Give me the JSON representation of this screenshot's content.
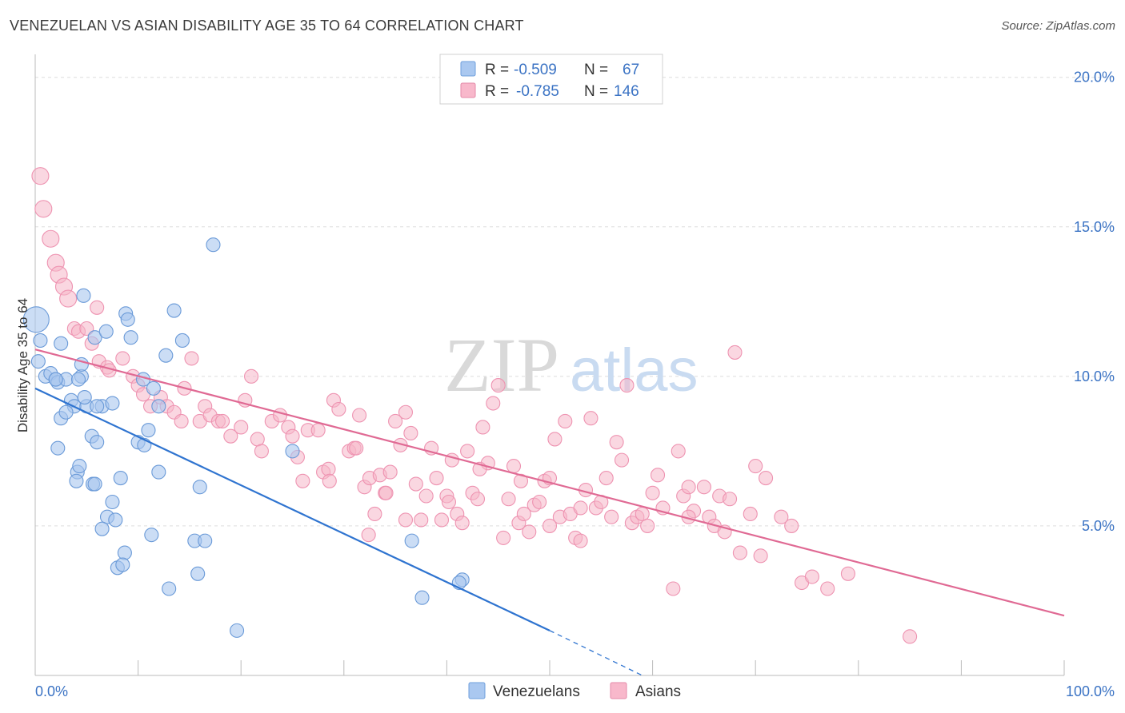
{
  "title": "VENEZUELAN VS ASIAN DISABILITY AGE 35 TO 64 CORRELATION CHART",
  "source": "Source: ZipAtlas.com",
  "watermark": {
    "zip": "ZIP",
    "atlas": "atlas"
  },
  "legend": {
    "rows": [
      {
        "r_label": "R =",
        "r_value": "-0.509",
        "n_label": "N =",
        "n_value": "67",
        "color": "#aac8f0"
      },
      {
        "r_label": "R =",
        "r_value": "-0.785",
        "n_label": "N =",
        "n_value": "146",
        "color": "#f8b8cb"
      }
    ]
  },
  "bottom_legend": [
    {
      "label": "Venezuelans",
      "color": "#aac8f0"
    },
    {
      "label": "Asians",
      "color": "#f8b8cb"
    }
  ],
  "colors": {
    "venezuelans_fill": "#a9c6ee",
    "venezuelans_line": "#2f74d0",
    "asians_fill": "#f6b6c9",
    "asians_line": "#e06a94",
    "tick_label": "#3b73c4",
    "grid": "#dddddd"
  },
  "chart_data": {
    "type": "scatter",
    "title": "VENEZUELAN VS ASIAN DISABILITY AGE 35 TO 64 CORRELATION CHART",
    "xlabel": "",
    "ylabel": "Disability Age 35 to 64",
    "xlim": [
      0,
      100
    ],
    "ylim": [
      0,
      20.5
    ],
    "x_tick_labels": [
      {
        "value": 0,
        "label": "0.0%"
      },
      {
        "value": 100,
        "label": "100.0%"
      }
    ],
    "y_tick_labels": [
      {
        "value": 5,
        "label": "5.0%"
      },
      {
        "value": 10,
        "label": "10.0%"
      },
      {
        "value": 15,
        "label": "15.0%"
      },
      {
        "value": 20,
        "label": "20.0%"
      }
    ],
    "grid": true,
    "legend_position": "top-center",
    "series": [
      {
        "name": "Venezuelans",
        "r": -0.509,
        "n": 67,
        "trend": {
          "x0": 0,
          "y0": 9.6,
          "x1": 50,
          "y1": 1.5,
          "dashed_to_x": 59,
          "dashed_to_y": 0
        },
        "points": [
          [
            0.1,
            11.9
          ],
          [
            0.3,
            10.5
          ],
          [
            0.5,
            11.2
          ],
          [
            1,
            10.0
          ],
          [
            1.5,
            10.1
          ],
          [
            2,
            9.9
          ],
          [
            2.5,
            11.1
          ],
          [
            2.2,
            9.8
          ],
          [
            3,
            9.9
          ],
          [
            3.5,
            9.2
          ],
          [
            3.8,
            9.0
          ],
          [
            4.5,
            10.0
          ],
          [
            4.2,
            9.9
          ],
          [
            5.5,
            8.0
          ],
          [
            5,
            9.0
          ],
          [
            6.5,
            9.0
          ],
          [
            4.8,
            9.3
          ],
          [
            2.5,
            8.6
          ],
          [
            2.2,
            7.6
          ],
          [
            4.5,
            10.4
          ],
          [
            4.7,
            12.7
          ],
          [
            5.8,
            11.3
          ],
          [
            6.9,
            11.5
          ],
          [
            8.8,
            12.1
          ],
          [
            9.0,
            11.9
          ],
          [
            9.3,
            11.3
          ],
          [
            10.5,
            9.9
          ],
          [
            11.0,
            8.2
          ],
          [
            7.5,
            9.1
          ],
          [
            6.0,
            9.0
          ],
          [
            11.5,
            9.6
          ],
          [
            12.0,
            9.0
          ],
          [
            10.0,
            7.8
          ],
          [
            10.6,
            7.7
          ],
          [
            12.7,
            10.7
          ],
          [
            13.5,
            12.2
          ],
          [
            14.3,
            11.2
          ],
          [
            17.3,
            14.4
          ],
          [
            4.1,
            6.8
          ],
          [
            4.0,
            6.5
          ],
          [
            4.3,
            7.0
          ],
          [
            5.6,
            6.4
          ],
          [
            8.3,
            6.6
          ],
          [
            12.0,
            6.8
          ],
          [
            16.0,
            6.3
          ],
          [
            7.5,
            5.8
          ],
          [
            7.0,
            5.3
          ],
          [
            7.8,
            5.2
          ],
          [
            6.5,
            4.9
          ],
          [
            8.7,
            4.1
          ],
          [
            11.3,
            4.7
          ],
          [
            15.5,
            4.5
          ],
          [
            16.5,
            4.5
          ],
          [
            8.0,
            3.6
          ],
          [
            8.5,
            3.7
          ],
          [
            13.0,
            2.9
          ],
          [
            15.8,
            3.4
          ],
          [
            19.6,
            1.5
          ],
          [
            25.0,
            7.5
          ],
          [
            36.6,
            4.5
          ],
          [
            41.5,
            3.2
          ],
          [
            41.2,
            3.1
          ],
          [
            37.6,
            2.6
          ],
          [
            5.8,
            6.4
          ],
          [
            3.0,
            8.8
          ],
          [
            6.0,
            7.8
          ],
          [
            2.0,
            9.9
          ]
        ]
      },
      {
        "name": "Asians",
        "r": -0.785,
        "n": 146,
        "trend": {
          "x0": 0,
          "y0": 10.9,
          "x1": 100,
          "y1": 2.0
        },
        "points": [
          [
            0.5,
            16.7
          ],
          [
            0.8,
            15.6
          ],
          [
            1.5,
            14.6
          ],
          [
            2.0,
            13.8
          ],
          [
            2.3,
            13.4
          ],
          [
            2.8,
            13.0
          ],
          [
            3.2,
            12.6
          ],
          [
            3.8,
            11.6
          ],
          [
            4.2,
            11.5
          ],
          [
            5.0,
            11.6
          ],
          [
            6.0,
            12.3
          ],
          [
            5.5,
            11.1
          ],
          [
            6.2,
            10.5
          ],
          [
            7.0,
            10.3
          ],
          [
            7.2,
            10.2
          ],
          [
            8.5,
            10.6
          ],
          [
            9.5,
            10.0
          ],
          [
            10.0,
            9.7
          ],
          [
            10.5,
            9.4
          ],
          [
            11.2,
            9.0
          ],
          [
            12.2,
            9.3
          ],
          [
            12.8,
            9.0
          ],
          [
            13.5,
            8.8
          ],
          [
            14.2,
            8.5
          ],
          [
            14.5,
            9.6
          ],
          [
            15.2,
            10.6
          ],
          [
            16.0,
            8.5
          ],
          [
            16.5,
            9.0
          ],
          [
            17.0,
            8.7
          ],
          [
            17.8,
            8.5
          ],
          [
            18.2,
            8.5
          ],
          [
            19.0,
            8.0
          ],
          [
            20.0,
            8.3
          ],
          [
            20.4,
            9.2
          ],
          [
            21.0,
            10.0
          ],
          [
            21.6,
            7.9
          ],
          [
            22.0,
            7.5
          ],
          [
            23.0,
            8.5
          ],
          [
            23.8,
            8.7
          ],
          [
            24.6,
            8.3
          ],
          [
            25.0,
            8.0
          ],
          [
            25.5,
            7.3
          ],
          [
            26.0,
            6.5
          ],
          [
            26.5,
            8.2
          ],
          [
            27.5,
            8.2
          ],
          [
            28.0,
            6.8
          ],
          [
            28.5,
            6.9
          ],
          [
            29.0,
            9.2
          ],
          [
            29.5,
            8.9
          ],
          [
            30.5,
            7.5
          ],
          [
            31.0,
            7.6
          ],
          [
            31.5,
            8.7
          ],
          [
            32.0,
            6.3
          ],
          [
            32.5,
            6.6
          ],
          [
            33.0,
            5.4
          ],
          [
            33.5,
            6.7
          ],
          [
            34.0,
            6.1
          ],
          [
            34.5,
            6.8
          ],
          [
            35.0,
            8.5
          ],
          [
            35.5,
            7.7
          ],
          [
            36.0,
            8.8
          ],
          [
            36.5,
            8.1
          ],
          [
            37.0,
            6.4
          ],
          [
            37.5,
            5.2
          ],
          [
            38.0,
            6.0
          ],
          [
            38.5,
            7.6
          ],
          [
            39.0,
            6.6
          ],
          [
            39.5,
            5.2
          ],
          [
            40.0,
            6.0
          ],
          [
            40.5,
            7.2
          ],
          [
            41.0,
            5.4
          ],
          [
            41.5,
            5.1
          ],
          [
            42.0,
            7.5
          ],
          [
            42.5,
            6.1
          ],
          [
            43.0,
            5.9
          ],
          [
            43.5,
            8.3
          ],
          [
            44.0,
            7.1
          ],
          [
            44.5,
            9.1
          ],
          [
            45.0,
            9.7
          ],
          [
            45.5,
            4.6
          ],
          [
            46.0,
            5.9
          ],
          [
            46.5,
            7.0
          ],
          [
            47.0,
            5.1
          ],
          [
            47.5,
            5.4
          ],
          [
            48.0,
            4.8
          ],
          [
            48.5,
            5.7
          ],
          [
            49.0,
            5.8
          ],
          [
            49.5,
            6.5
          ],
          [
            50.0,
            6.6
          ],
          [
            50.5,
            7.9
          ],
          [
            51.0,
            5.3
          ],
          [
            51.5,
            8.5
          ],
          [
            52.0,
            5.4
          ],
          [
            52.5,
            4.6
          ],
          [
            53.0,
            5.6
          ],
          [
            53.5,
            6.2
          ],
          [
            54.0,
            8.6
          ],
          [
            54.5,
            5.6
          ],
          [
            55.0,
            5.8
          ],
          [
            55.5,
            6.6
          ],
          [
            56.0,
            5.3
          ],
          [
            56.5,
            7.8
          ],
          [
            57.0,
            7.2
          ],
          [
            57.5,
            9.7
          ],
          [
            58.0,
            5.1
          ],
          [
            58.5,
            5.3
          ],
          [
            59.0,
            5.4
          ],
          [
            59.5,
            5.0
          ],
          [
            60.0,
            6.1
          ],
          [
            60.5,
            6.7
          ],
          [
            61.0,
            5.6
          ],
          [
            62.0,
            2.9
          ],
          [
            62.5,
            7.5
          ],
          [
            63.0,
            6.0
          ],
          [
            63.5,
            6.3
          ],
          [
            64.0,
            5.5
          ],
          [
            65.0,
            6.3
          ],
          [
            65.5,
            5.3
          ],
          [
            66.0,
            5.0
          ],
          [
            66.5,
            6.0
          ],
          [
            67.0,
            4.8
          ],
          [
            68.0,
            10.8
          ],
          [
            68.5,
            4.1
          ],
          [
            69.5,
            5.4
          ],
          [
            70.0,
            7.0
          ],
          [
            70.5,
            4.0
          ],
          [
            71.0,
            6.6
          ],
          [
            72.5,
            5.3
          ],
          [
            73.5,
            5.0
          ],
          [
            74.5,
            3.1
          ],
          [
            75.5,
            3.3
          ],
          [
            77.0,
            2.9
          ],
          [
            79.0,
            3.4
          ],
          [
            85.0,
            1.3
          ],
          [
            53.0,
            4.5
          ],
          [
            50.0,
            5.0
          ],
          [
            63.5,
            5.3
          ],
          [
            67.5,
            5.9
          ],
          [
            31.2,
            7.6
          ],
          [
            28.6,
            6.5
          ],
          [
            47.2,
            6.5
          ],
          [
            34.1,
            6.1
          ],
          [
            40.2,
            5.8
          ],
          [
            36.0,
            5.2
          ],
          [
            32.4,
            4.7
          ],
          [
            43.2,
            6.9
          ]
        ]
      }
    ]
  }
}
